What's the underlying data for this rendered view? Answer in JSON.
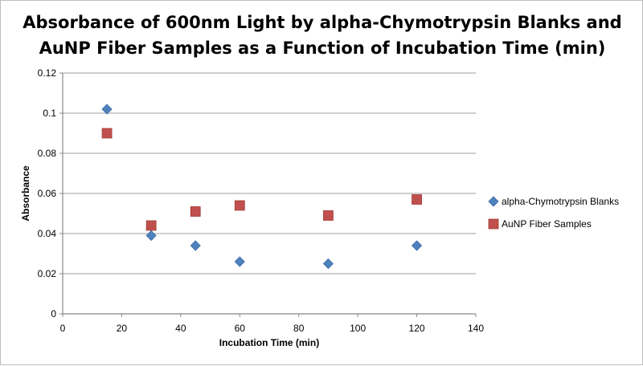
{
  "chart_data": {
    "type": "scatter",
    "title_lines": [
      "Absorbance of 600nm Light by alpha-Chymotrypsin Blanks and",
      "AuNP Fiber Samples as a Function of Incubation Time (min)"
    ],
    "xlabel": "Incubation Time (min)",
    "ylabel": "Absorbance",
    "xlim": [
      0,
      140
    ],
    "ylim": [
      0,
      0.12
    ],
    "xticks": [
      0,
      20,
      40,
      60,
      80,
      100,
      120,
      140
    ],
    "yticks": [
      0,
      0.02,
      0.04,
      0.06,
      0.08,
      0.1,
      0.12
    ],
    "ytick_labels": [
      "0",
      "0.02",
      "0.04",
      "0.06",
      "0.08",
      "0.1",
      "0.12"
    ],
    "grid": "horizontal",
    "legend_position": "right",
    "series": [
      {
        "name": "alpha-Chymotrypsin Blanks",
        "marker": "diamond",
        "color": "#4f81bd",
        "x": [
          15,
          30,
          45,
          60,
          90,
          120
        ],
        "y": [
          0.102,
          0.039,
          0.034,
          0.026,
          0.025,
          0.034
        ]
      },
      {
        "name": "AuNP Fiber Samples",
        "marker": "square",
        "color": "#c0504d",
        "x": [
          15,
          30,
          45,
          60,
          90,
          120
        ],
        "y": [
          0.09,
          0.044,
          0.051,
          0.054,
          0.049,
          0.057
        ]
      }
    ]
  }
}
